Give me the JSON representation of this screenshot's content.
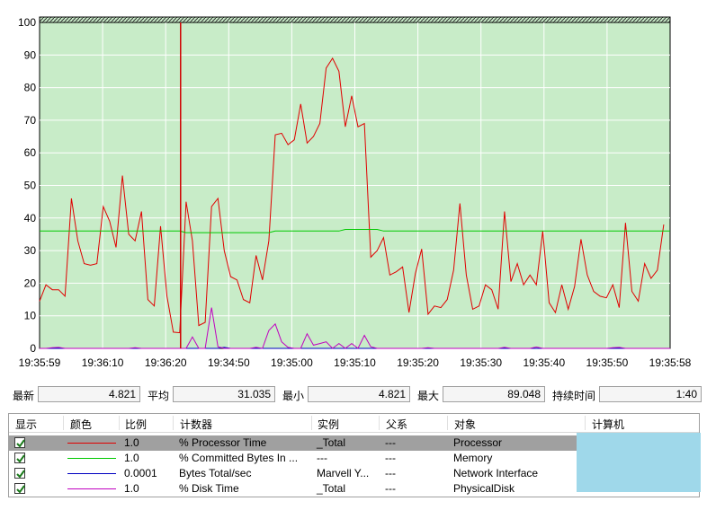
{
  "chart_data": {
    "type": "line",
    "y_ticks": [
      "0",
      "10",
      "20",
      "30",
      "40",
      "50",
      "60",
      "70",
      "80",
      "90",
      "100"
    ],
    "x_ticks": [
      "19:35:59",
      "19:36:10",
      "19:36:20",
      "19:34:50",
      "19:35:00",
      "19:35:10",
      "19:35:20",
      "19:35:30",
      "19:35:40",
      "19:35:50",
      "19:35:58"
    ],
    "ylim": [
      0,
      100
    ],
    "grid": true,
    "background": "#c8ecc8",
    "cursor_sample": 22,
    "samples": 100,
    "series": [
      {
        "color": "#e00000",
        "values": [
          14.5,
          19.5,
          18,
          18,
          16,
          46,
          33,
          26,
          25.5,
          26,
          43.5,
          39,
          31,
          53,
          35,
          33,
          42,
          15,
          13,
          37.5,
          16,
          5,
          4.8,
          45,
          33,
          7,
          8,
          43.5,
          46,
          30,
          22,
          21,
          15,
          14,
          28.5,
          21,
          33,
          65.5,
          66,
          62.5,
          64,
          75,
          63,
          65,
          69,
          86,
          89,
          85,
          68,
          77.5,
          68,
          69,
          28,
          30,
          34,
          22.5,
          23.5,
          25,
          11,
          23,
          30.5,
          10.5,
          13,
          12.5,
          15,
          24,
          44.5,
          22.5,
          12,
          13,
          19.5,
          18,
          12,
          42,
          20.5,
          26,
          19.5,
          22.5,
          19.5,
          36,
          14,
          11,
          19.5,
          12,
          19,
          33.5,
          22.5,
          17.5,
          16,
          15.5,
          19.5,
          12.5,
          38.5,
          17.5,
          14.5,
          26,
          21.5,
          24,
          38
        ]
      },
      {
        "color": "#00c800",
        "values": [
          36,
          36,
          36,
          36,
          36,
          36,
          36,
          36,
          36,
          36,
          36,
          36,
          36,
          36,
          36,
          36,
          36,
          36,
          36,
          36,
          36,
          36,
          36,
          35.5,
          35.5,
          35.5,
          35.5,
          35.5,
          35.5,
          35.5,
          35.5,
          35.5,
          35.5,
          35.5,
          35.5,
          35.5,
          35.5,
          36,
          36,
          36,
          36,
          36,
          36,
          36,
          36,
          36,
          36,
          36,
          36.5,
          36.5,
          36.5,
          36.5,
          36.5,
          36.5,
          36,
          36,
          36,
          36,
          36,
          36,
          36,
          36,
          36,
          36,
          36,
          36,
          36,
          36,
          36,
          36,
          36,
          36,
          36,
          36,
          36,
          36,
          36,
          36,
          36,
          36,
          36,
          36,
          36,
          36,
          36,
          36,
          36,
          36,
          36,
          36,
          36,
          36,
          36,
          36,
          36,
          36,
          36,
          36,
          36,
          36
        ]
      },
      {
        "color": "#0000c0",
        "values": [
          0,
          0,
          0,
          0,
          0,
          0,
          0,
          0,
          0,
          0,
          0,
          0,
          0,
          0,
          0,
          0,
          0,
          0,
          0,
          0,
          0,
          0,
          0,
          0,
          0,
          0,
          0,
          0,
          0,
          0.3,
          0,
          0,
          0,
          0,
          0,
          0,
          0,
          0,
          0,
          0,
          0,
          0,
          0,
          0,
          0,
          0,
          0,
          0,
          0,
          0,
          0,
          0,
          0,
          0,
          0,
          0,
          0,
          0,
          0,
          0,
          0,
          0,
          0,
          0,
          0,
          0,
          0,
          0,
          0,
          0,
          0,
          0,
          0,
          0,
          0,
          0,
          0,
          0,
          0,
          0,
          0,
          0,
          0,
          0,
          0,
          0,
          0,
          0,
          0,
          0,
          0,
          0,
          0,
          0,
          0,
          0,
          0,
          0,
          0,
          0
        ]
      },
      {
        "color": "#c000c0",
        "values": [
          0,
          0,
          0.2,
          0.3,
          0,
          0,
          0,
          0,
          0,
          0,
          0,
          0,
          0,
          0,
          0,
          0.2,
          0,
          0,
          0,
          0,
          0,
          0,
          0,
          0,
          3.5,
          0,
          0,
          12.5,
          0.5,
          0,
          0,
          0,
          0,
          0,
          0.3,
          0,
          5.5,
          7.5,
          2,
          0.3,
          0,
          0,
          4.5,
          1,
          1.5,
          2,
          0,
          1.5,
          0,
          1.5,
          0,
          4,
          0.5,
          0,
          0,
          0,
          0,
          0,
          0,
          0,
          0,
          0.2,
          0,
          0,
          0,
          0,
          0,
          0,
          0,
          0,
          0,
          0,
          0,
          0.3,
          0,
          0,
          0,
          0,
          0.4,
          0,
          0,
          0,
          0,
          0,
          0,
          0,
          0,
          0,
          0,
          0,
          0.2,
          0.3,
          0,
          0,
          0,
          0,
          0,
          0,
          0,
          0
        ]
      }
    ]
  },
  "stats": {
    "last_label": "最新",
    "last_value": "4.821",
    "avg_label": "平均",
    "avg_value": "31.035",
    "min_label": "最小",
    "min_value": "4.821",
    "max_label": "最大",
    "max_value": "89.048",
    "duration_label": "持续时间",
    "duration_value": "1:40"
  },
  "table": {
    "headers": {
      "show": "显示",
      "color": "颜色",
      "scale": "比例",
      "counter": "计数器",
      "instance": "实例",
      "parent": "父系",
      "object": "对象",
      "computer": "计算机"
    },
    "rows": [
      {
        "color": "#e00000",
        "scale": "1.0",
        "counter": "% Processor Time",
        "instance": "_Total",
        "parent": "---",
        "object": "Processor"
      },
      {
        "color": "#00c800",
        "scale": "1.0",
        "counter": "% Committed Bytes In ...",
        "instance": "---",
        "parent": "---",
        "object": "Memory"
      },
      {
        "color": "#0000c0",
        "scale": "0.0001",
        "counter": "Bytes Total/sec",
        "instance": "Marvell Y...",
        "parent": "---",
        "object": "Network Interface"
      },
      {
        "color": "#c000c0",
        "scale": "1.0",
        "counter": "% Disk Time",
        "instance": "_Total",
        "parent": "---",
        "object": "PhysicalDisk"
      }
    ]
  }
}
